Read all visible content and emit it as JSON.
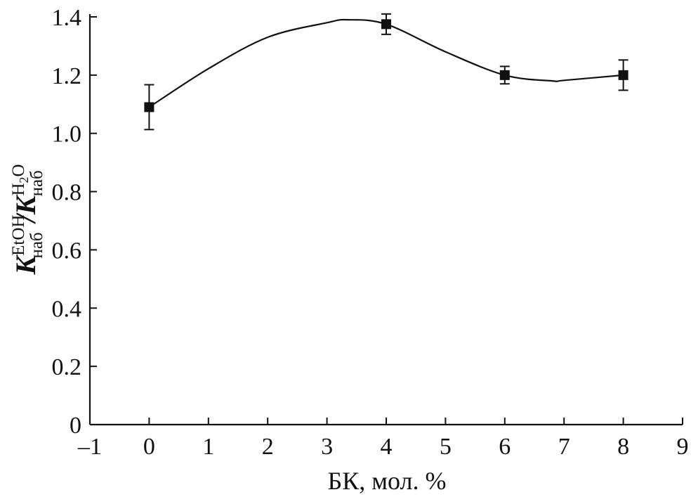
{
  "chart_data": {
    "type": "line",
    "xlabel": "БК, мол. %",
    "ylabel": {
      "symbol": "K",
      "numerator_sup": "EtOH",
      "sub": "наб",
      "slash": "/",
      "denominator_sup_main": "H",
      "denominator_sup_index": "2",
      "denominator_sup_tail": "O"
    },
    "xlim": [
      -1,
      9
    ],
    "ylim": [
      0,
      1.4
    ],
    "x_ticks": [
      -1,
      0,
      1,
      2,
      3,
      4,
      5,
      6,
      7,
      8,
      9
    ],
    "x_tick_labels": [
      "–1",
      "0",
      "1",
      "2",
      "3",
      "4",
      "5",
      "6",
      "7",
      "8",
      "9"
    ],
    "y_ticks": [
      0,
      0.2,
      0.4,
      0.6,
      0.8,
      1.0,
      1.2,
      1.4
    ],
    "y_tick_labels": [
      "0",
      "0.2",
      "0.4",
      "0.6",
      "0.8",
      "1.0",
      "1.2",
      "1.4"
    ],
    "grid": false,
    "series": [
      {
        "x": [
          0,
          4,
          6,
          8
        ],
        "y": [
          1.09,
          1.375,
          1.2,
          1.2
        ],
        "error": [
          0.077,
          0.035,
          0.03,
          0.052
        ],
        "marker": "square",
        "color": "#111111"
      }
    ],
    "curve": {
      "x": [
        0,
        1,
        2,
        3,
        3.35,
        4,
        5,
        6,
        6.8,
        7,
        8
      ],
      "y": [
        1.09,
        1.222,
        1.33,
        1.38,
        1.39,
        1.375,
        1.28,
        1.2,
        1.18,
        1.182,
        1.2
      ]
    }
  }
}
